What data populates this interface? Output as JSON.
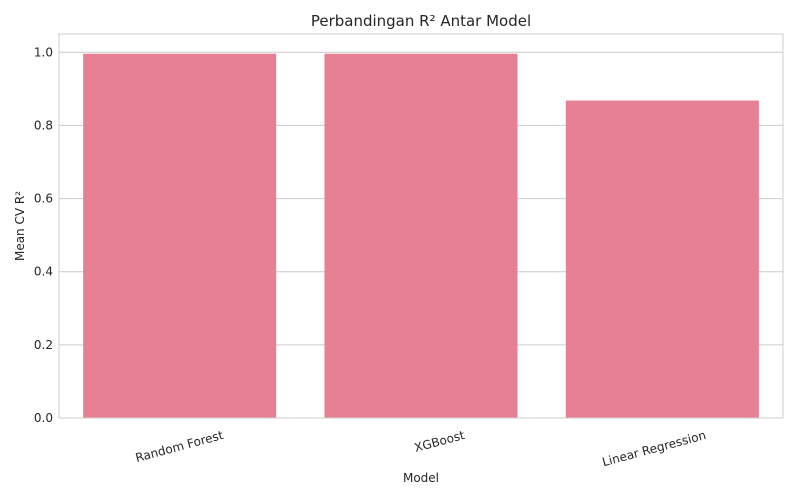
{
  "chart_data": {
    "type": "bar",
    "title": "Perbandingan R² Antar Model",
    "xlabel": "Model",
    "ylabel": "Mean CV R²",
    "categories": [
      "Random Forest",
      "XGBoost",
      "Linear Regression"
    ],
    "values": [
      0.996,
      0.996,
      0.868
    ],
    "ylim": [
      0,
      1.05
    ],
    "yticks": [
      "0.0",
      "0.2",
      "0.4",
      "0.6",
      "0.8",
      "1.0"
    ],
    "grid": true,
    "bar_color": "#e78093",
    "grid_color": "#cccccc"
  }
}
